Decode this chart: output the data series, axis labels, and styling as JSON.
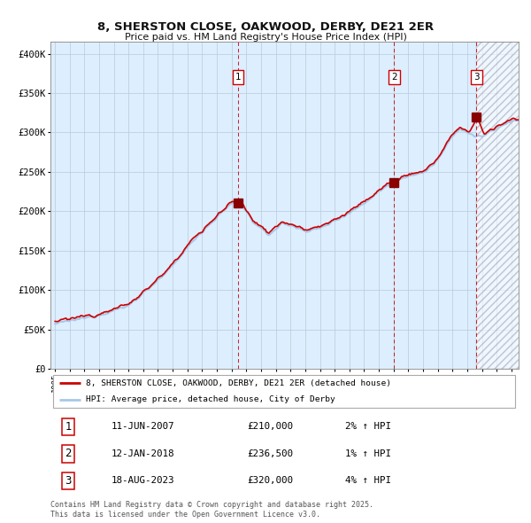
{
  "title_line1": "8, SHERSTON CLOSE, OAKWOOD, DERBY, DE21 2ER",
  "title_line2": "Price paid vs. HM Land Registry's House Price Index (HPI)",
  "hpi_label": "HPI: Average price, detached house, City of Derby",
  "property_label": "8, SHERSTON CLOSE, OAKWOOD, DERBY, DE21 2ER (detached house)",
  "y_ticks": [
    0,
    50000,
    100000,
    150000,
    200000,
    250000,
    300000,
    350000,
    400000
  ],
  "y_tick_labels": [
    "£0",
    "£50K",
    "£100K",
    "£150K",
    "£200K",
    "£250K",
    "£300K",
    "£350K",
    "£400K"
  ],
  "ylim": [
    0,
    415000
  ],
  "xlim_start": 1994.7,
  "xlim_end": 2026.5,
  "sale1_date": 2007.44,
  "sale1_price": 210000,
  "sale1_label": "1",
  "sale2_date": 2018.04,
  "sale2_price": 236500,
  "sale2_label": "2",
  "sale3_date": 2023.63,
  "sale3_price": 320000,
  "sale3_label": "3",
  "footer_line1": "Contains HM Land Registry data © Crown copyright and database right 2025.",
  "footer_line2": "This data is licensed under the Open Government Licence v3.0.",
  "table_rows": [
    [
      "1",
      "11-JUN-2007",
      "£210,000",
      "2% ↑ HPI"
    ],
    [
      "2",
      "12-JAN-2018",
      "£236,500",
      "1% ↑ HPI"
    ],
    [
      "3",
      "18-AUG-2023",
      "£320,000",
      "4% ↑ HPI"
    ]
  ],
  "hpi_color": "#a8c8e8",
  "property_color": "#cc0000",
  "bg_color": "#ddeeff",
  "grid_color": "#bbccdd",
  "sale_marker_color": "#880000",
  "vline_color": "#cc0000",
  "text_color": "#111111",
  "hatch_bg": "#e8e8f0"
}
